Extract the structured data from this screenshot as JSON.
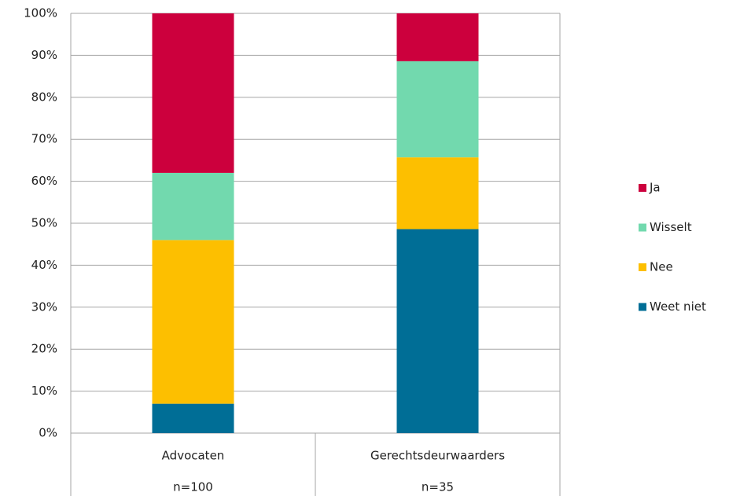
{
  "chart_data": {
    "type": "stacked_bar",
    "categories": [
      "Advocaten",
      "Gerechtsdeurwaarders"
    ],
    "category_notes": [
      "n=100",
      "n=35"
    ],
    "series": [
      {
        "name": "Weet niet",
        "color": "#006e96",
        "values": [
          7,
          48.6
        ]
      },
      {
        "name": "Nee",
        "color": "#fdbf00",
        "values": [
          39,
          17.1
        ]
      },
      {
        "name": "Wisselt",
        "color": "#72d9ae",
        "values": [
          16,
          22.9
        ]
      },
      {
        "name": "Ja",
        "color": "#cc003d",
        "values": [
          38,
          11.4
        ]
      }
    ],
    "ylim": [
      0,
      100
    ],
    "yticks": [
      {
        "value": 0,
        "label": "0%"
      },
      {
        "value": 10,
        "label": "10%"
      },
      {
        "value": 20,
        "label": "20%"
      },
      {
        "value": 30,
        "label": "30%"
      },
      {
        "value": 40,
        "label": "40%"
      },
      {
        "value": 50,
        "label": "50%"
      },
      {
        "value": 60,
        "label": "60%"
      },
      {
        "value": 70,
        "label": "70%"
      },
      {
        "value": 80,
        "label": "80%"
      },
      {
        "value": 90,
        "label": "90%"
      },
      {
        "value": 100,
        "label": "100%"
      }
    ],
    "grid": true,
    "legend": "right"
  }
}
